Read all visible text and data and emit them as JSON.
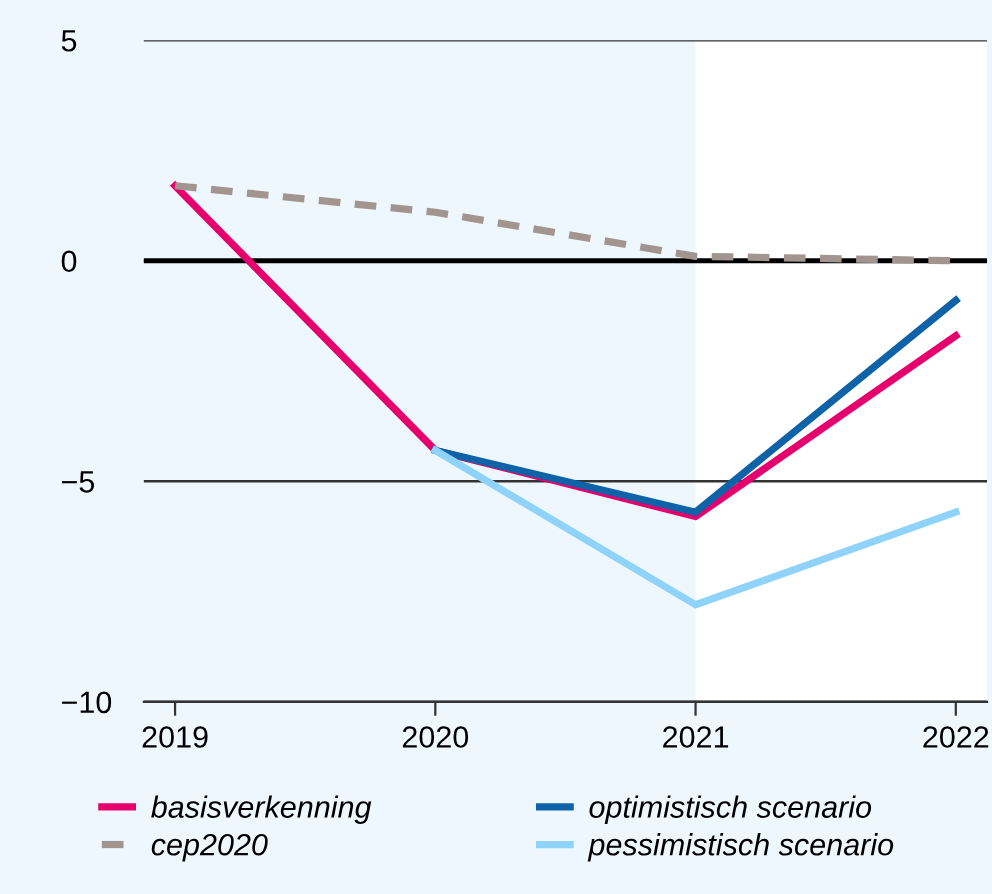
{
  "chart_data": {
    "type": "line",
    "x": [
      2019,
      2020,
      2021,
      2022
    ],
    "series": [
      {
        "name": "basisverkenning",
        "color": "#e5006d",
        "values": [
          1.7,
          -4.3,
          -5.8,
          -1.7
        ]
      },
      {
        "name": "cep2020",
        "color": "#a29590",
        "values": [
          1.7,
          1.1,
          0.1,
          0.0
        ],
        "line_style": "dashed"
      },
      {
        "name": "optimistisch scenario",
        "color": "#0d62a8",
        "values": [
          null,
          -4.3,
          -5.7,
          -0.9
        ]
      },
      {
        "name": "pessimistisch scenario",
        "color": "#8fd3fb",
        "values": [
          null,
          -4.3,
          -7.8,
          -5.7
        ]
      }
    ],
    "xlim": [
      2018.88,
      2022.12
    ],
    "xticks": [
      2019,
      2020,
      2021,
      2022
    ],
    "ylim": [
      -10,
      5
    ],
    "yticks": [
      {
        "value": -10,
        "label": "−10"
      },
      {
        "value": -5,
        "label": "−5"
      },
      0,
      5
    ],
    "grid": "y",
    "legend": "bottom",
    "line_style": "solid",
    "marker": "none",
    "ref_lines": [
      {
        "axis": "y",
        "value": 0,
        "color": "#000000"
      }
    ],
    "bands": [
      {
        "axis": "x",
        "from": 2021,
        "to": 2022.12,
        "color": "#ffffff"
      }
    ]
  }
}
